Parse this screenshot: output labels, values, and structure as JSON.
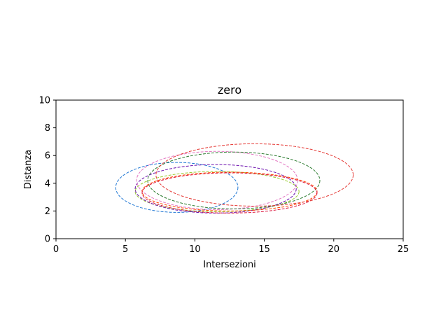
{
  "chart_data": {
    "type": "scatter",
    "title": "zero",
    "xlabel": "Intersezioni",
    "ylabel": "Distanza",
    "xlim": [
      0,
      25
    ],
    "ylim": [
      0,
      10
    ],
    "xticks": [
      "0",
      "5",
      "10",
      "15",
      "20",
      "25"
    ],
    "yticks": [
      "0",
      "2",
      "4",
      "6",
      "8",
      "10"
    ],
    "grid": false,
    "line_style": "dashed",
    "series": [
      {
        "color": "#1f77d4",
        "cx": 8.7,
        "cy": 3.7,
        "rx": 4.4,
        "ry": 1.8
      },
      {
        "color": "#9acd32",
        "cx": 11.6,
        "cy": 3.4,
        "rx": 5.9,
        "ry": 1.45
      },
      {
        "color": "#6a0dad",
        "cx": 11.5,
        "cy": 3.6,
        "rx": 5.8,
        "ry": 1.75
      },
      {
        "color": "#e377c2",
        "cx": 11.6,
        "cy": 4.2,
        "rx": 5.8,
        "ry": 2.1
      },
      {
        "color": "#2e7d32",
        "cx": 12.8,
        "cy": 4.2,
        "rx": 6.2,
        "ry": 2.05
      },
      {
        "color": "#ff4500",
        "cx": 12.5,
        "cy": 3.4,
        "rx": 6.3,
        "ry": 1.4
      },
      {
        "color": "#dc143c",
        "cx": 12.5,
        "cy": 3.3,
        "rx": 6.3,
        "ry": 1.45
      },
      {
        "color": "#e53935",
        "cx": 14.3,
        "cy": 4.6,
        "rx": 7.1,
        "ry": 2.25
      }
    ]
  }
}
